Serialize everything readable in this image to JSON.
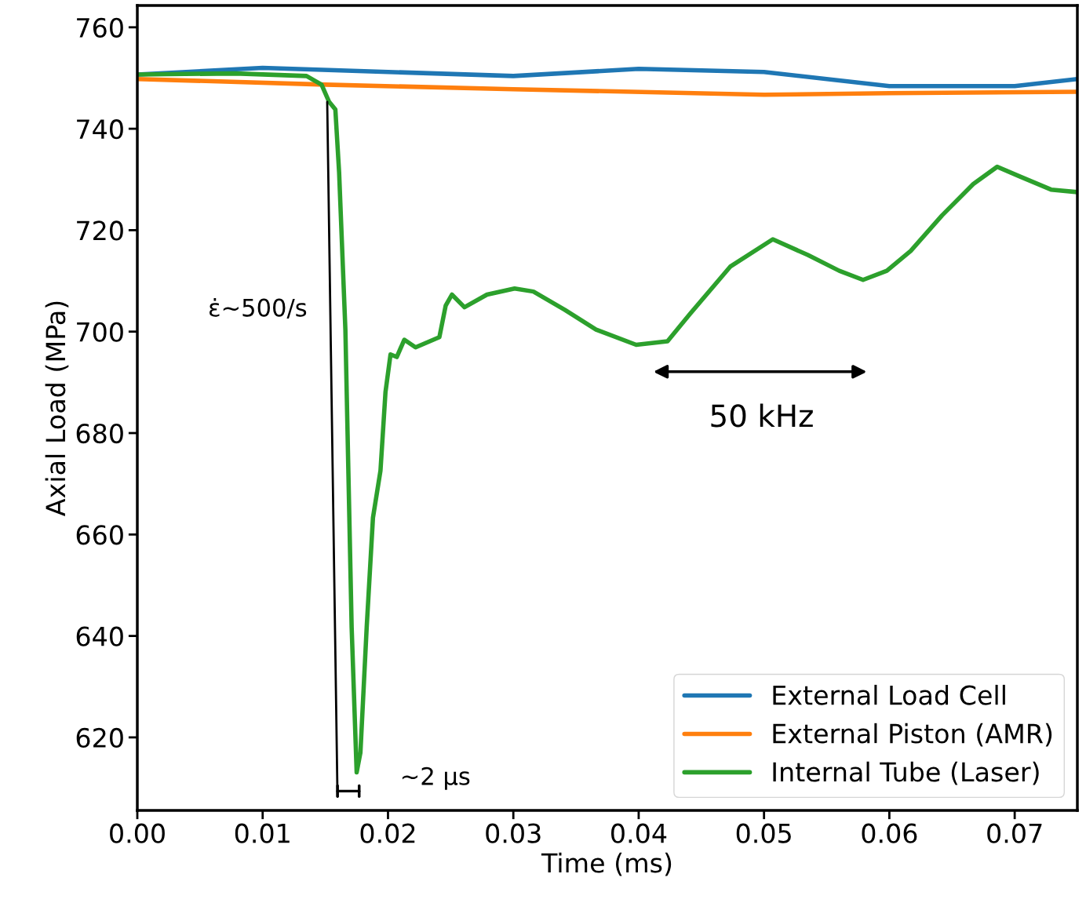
{
  "chart_data": {
    "type": "line",
    "xlabel": "Time (ms)",
    "ylabel": "Axial Load (MPa)",
    "xlim": [
      0,
      0.075
    ],
    "ylim": [
      605.6,
      764.3
    ],
    "xticks": [
      {
        "value": 0,
        "label": "0.00"
      },
      {
        "value": 0.01,
        "label": "0.01"
      },
      {
        "value": 0.02,
        "label": "0.02"
      },
      {
        "value": 0.03,
        "label": "0.03"
      },
      {
        "value": 0.04,
        "label": "0.04"
      },
      {
        "value": 0.05,
        "label": "0.05"
      },
      {
        "value": 0.06,
        "label": "0.06"
      },
      {
        "value": 0.07,
        "label": "0.07"
      }
    ],
    "yticks": [
      620,
      640,
      660,
      680,
      700,
      720,
      740,
      760
    ],
    "grid": false,
    "legend": "bottom right",
    "marker": "none",
    "line_style": "solid",
    "series": [
      {
        "name": "External Load Cell",
        "color": "#1f77b4",
        "x": [
          0,
          0.01,
          0.03,
          0.04,
          0.05,
          0.06,
          0.07,
          0.075
        ],
        "values": [
          750.7,
          752,
          750.4,
          751.8,
          751.2,
          748.4,
          748.4,
          749.8
        ]
      },
      {
        "name": "External Piston (AMR)",
        "color": "#ff7f0e",
        "x": [
          0,
          0.015,
          0.03,
          0.05,
          0.06,
          0.075
        ],
        "values": [
          749.8,
          748.7,
          747.8,
          746.7,
          747,
          747.3
        ]
      },
      {
        "name": "Internal Tube (Laser)",
        "color": "#2ca02c",
        "x": [
          0,
          0.0078,
          0.0135,
          0.0147,
          0.0153,
          0.0158,
          0.0161,
          0.0166,
          0.0171,
          0.0175,
          0.0178,
          0.0183,
          0.0188,
          0.0194,
          0.0198,
          0.0202,
          0.0207,
          0.0213,
          0.0222,
          0.0241,
          0.0246,
          0.0251,
          0.0261,
          0.0279,
          0.0301,
          0.0316,
          0.0341,
          0.0366,
          0.0398,
          0.0423,
          0.0441,
          0.0473,
          0.0507,
          0.0535,
          0.056,
          0.0579,
          0.0598,
          0.0617,
          0.0642,
          0.0667,
          0.0686,
          0.0704,
          0.0729,
          0.075
        ],
        "values": [
          750.7,
          750.9,
          750.4,
          748.7,
          745.3,
          743.8,
          731.4,
          700.4,
          641.7,
          613.1,
          617,
          641.7,
          663.3,
          672.6,
          688.1,
          695.5,
          695,
          698.4,
          696.9,
          698.9,
          705.1,
          707.3,
          704.8,
          707.3,
          708.5,
          707.9,
          704.3,
          700.4,
          697.4,
          698.1,
          703.5,
          712.8,
          718.2,
          715.1,
          712,
          710.2,
          712,
          715.9,
          722.9,
          729.1,
          732.5,
          730.6,
          728,
          727.5
        ]
      },
      {
        "color": "#000000",
        "x": [
          0.01515,
          0.01597
        ],
        "values": [
          745.3,
          608.4
        ]
      }
    ],
    "annotations": [
      "ε̇~500/s",
      "50 kHz",
      "~2 μs"
    ]
  }
}
